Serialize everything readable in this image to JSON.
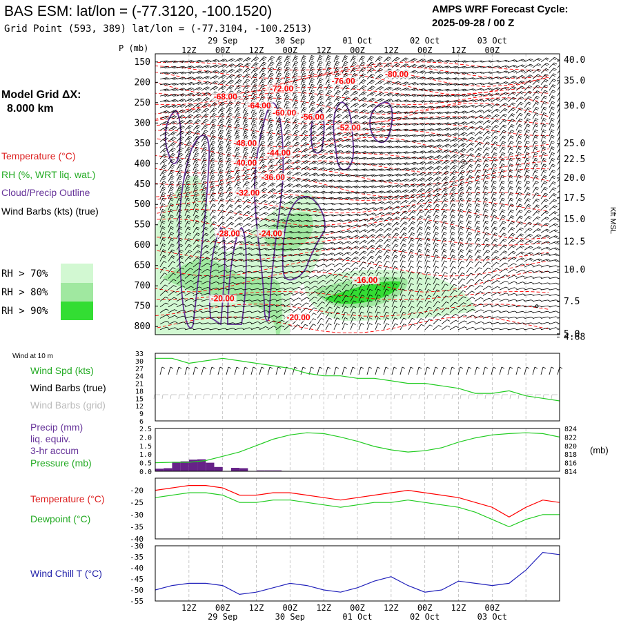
{
  "header": {
    "title": "BAS ESM:  lat/lon = (-77.3120, -100.1520)",
    "grid_point": "Grid Point (593, 389) lat/lon = (-77.3104, -100.2513)",
    "cycle_line1": "AMPS WRF Forecast Cycle:",
    "cycle_line2": "2025-09-28 / 00  Z"
  },
  "time_axis": {
    "hour_labels": [
      "12Z",
      "00Z",
      "12Z",
      "00Z",
      "12Z",
      "00Z",
      "12Z",
      "00Z",
      "12Z",
      "00Z"
    ],
    "date_labels": [
      "29 Sep",
      "30 Sep",
      "01 Oct",
      "02 Oct",
      "03 Oct"
    ]
  },
  "left_legend": {
    "model_grid_line1": "Model Grid ΔX:",
    "model_grid_line2": "8.000 km",
    "temperature": "Temperature (°C)",
    "rh": "RH (%, WRT liq. wat.)",
    "cloud": "Cloud/Precip Outline",
    "wind_barbs": "Wind Barbs (kts) (true)",
    "rh70": "RH > 70%",
    "rh80": "RH > 80%",
    "rh90": "RH > 90%",
    "wind_at_10m": "Wind at 10 m",
    "wind_spd": "Wind Spd (kts)",
    "wind_barbs_true": "Wind Barbs (true)",
    "wind_barbs_grid": "Wind Barbs (grid)",
    "precip1": "Precip (mm)",
    "precip2": "liq. equiv.",
    "precip3": "3-hr accum",
    "pressure": "Pressure (mb)",
    "temperature2": "Temperature (°C)",
    "dewpoint": "Dewpoint (°C)",
    "windchill": "Wind Chill T (°C)",
    "mb_unit": "(mb)"
  },
  "colors": {
    "temp_contour": "#ff0000",
    "rh70": "#d2f8d2",
    "rh80": "#a0e8a0",
    "rh90": "#33dd33",
    "cloud": "#663399",
    "wind": "#000000",
    "green_line": "#22cc22",
    "precip_bar": "#662288",
    "windchill": "#2222bb",
    "grid": "#bbbbbb"
  },
  "chart_data": [
    {
      "type": "time-height",
      "title": "Time-height cross section",
      "ylabel": "P (mb)",
      "y_ticks": [
        150,
        200,
        250,
        300,
        350,
        400,
        450,
        500,
        550,
        600,
        650,
        700,
        750,
        800
      ],
      "ylim": [
        130,
        820
      ],
      "right_label": "Kft MSL",
      "right_ticks": [
        "40.0",
        "35.0",
        "30.0",
        "25.0",
        "22.5",
        "20.0",
        "17.5",
        "15.0",
        "12.5",
        "10.0",
        "7.5",
        "5.0",
        "4.68"
      ],
      "right_tick_pressure": [
        145,
        196,
        258,
        350,
        389,
        435,
        484,
        537,
        592,
        661,
        739,
        818,
        826
      ],
      "temp_labels": [
        {
          "text": "-80.00",
          "p": 187,
          "h": 86
        },
        {
          "text": "-76.00",
          "p": 204,
          "h": 67
        },
        {
          "text": "-72.00",
          "p": 222,
          "h": 45
        },
        {
          "text": "-68.00",
          "p": 242,
          "h": 25
        },
        {
          "text": "-64.00",
          "p": 264,
          "h": 37
        },
        {
          "text": "-60.00",
          "p": 282,
          "h": 46
        },
        {
          "text": "-56.00",
          "p": 292,
          "h": 56
        },
        {
          "text": "-52.00",
          "p": 318,
          "h": 69
        },
        {
          "text": "-48.00",
          "p": 356,
          "h": 32
        },
        {
          "text": "-44.00",
          "p": 380,
          "h": 44
        },
        {
          "text": "-40.00",
          "p": 405,
          "h": 32
        },
        {
          "text": "-36.00",
          "p": 440,
          "h": 42
        },
        {
          "text": "-32.00",
          "p": 478,
          "h": 33
        },
        {
          "text": "-28.00",
          "p": 578,
          "h": 26
        },
        {
          "text": "-24.00",
          "p": 578,
          "h": 41
        },
        {
          "text": "-16.00",
          "p": 693,
          "h": 75
        },
        {
          "text": "-20.00",
          "p": 738,
          "h": 24
        },
        {
          "text": "-20.00",
          "p": 784,
          "h": 51
        }
      ]
    },
    {
      "type": "line",
      "title": "Wind Spd (kts)",
      "ylim": [
        6,
        33
      ],
      "y_ticks": [
        6,
        9,
        12,
        15,
        18,
        21,
        24,
        27,
        30,
        33
      ],
      "x_hours": [
        0,
        6,
        12,
        18,
        24,
        30,
        36,
        42,
        48,
        54,
        60,
        66,
        72,
        78,
        84,
        90,
        96,
        102,
        108,
        114,
        120,
        126,
        132,
        138,
        144
      ],
      "values": [
        31,
        31,
        29,
        30,
        31,
        30,
        29,
        28,
        27,
        25,
        24,
        24,
        23,
        23,
        22,
        21,
        21,
        20,
        19,
        17,
        17,
        18,
        16,
        15,
        14
      ]
    },
    {
      "type": "bar+line",
      "title": "Precip (mm) / Pressure (mb)",
      "precip_ylim": [
        0,
        2.5
      ],
      "precip_ticks": [
        "0.0",
        "0.5",
        "1.0",
        "1.5",
        "2.0",
        "2.5"
      ],
      "precip_x_hours": [
        0,
        3,
        6,
        9,
        12,
        15,
        18,
        21,
        24,
        27,
        30,
        33,
        36,
        39,
        42,
        45
      ],
      "precip_values": [
        0.15,
        0.18,
        0.55,
        0.58,
        0.68,
        0.7,
        0.5,
        0.25,
        0.0,
        0.2,
        0.18,
        0.0,
        0.05,
        0.05,
        0.05,
        0.0
      ],
      "pressure_ylim": [
        814,
        824
      ],
      "pressure_ticks": [
        814,
        816,
        818,
        820,
        822,
        824
      ],
      "pressure_x_hours": [
        0,
        6,
        12,
        18,
        24,
        30,
        36,
        42,
        48,
        54,
        60,
        66,
        72,
        78,
        84,
        90,
        96,
        102,
        108,
        114,
        120,
        126,
        132,
        138,
        144
      ],
      "pressure_values": [
        816.0,
        816.1,
        816.1,
        816.5,
        817.5,
        818.5,
        820.0,
        821.5,
        822.5,
        823.0,
        822.8,
        822.0,
        821.0,
        819.8,
        819.0,
        818.5,
        818.8,
        819.5,
        820.8,
        821.8,
        822.5,
        822.8,
        823.0,
        822.8,
        822.0
      ]
    },
    {
      "type": "line",
      "title": "Temperature / Dewpoint (°C)",
      "ylim": [
        -40,
        -15
      ],
      "y_ticks": [
        -40,
        -35,
        -30,
        -25,
        -20
      ],
      "x_hours": [
        0,
        6,
        12,
        18,
        24,
        30,
        36,
        42,
        48,
        54,
        60,
        66,
        72,
        78,
        84,
        90,
        96,
        102,
        108,
        114,
        120,
        126,
        132,
        138,
        144
      ],
      "series": [
        {
          "name": "Temperature",
          "values": [
            -20,
            -19,
            -18,
            -18,
            -19,
            -22,
            -22,
            -21,
            -21,
            -22,
            -23,
            -24,
            -23,
            -22,
            -21,
            -20,
            -21,
            -22,
            -23,
            -25,
            -27,
            -31,
            -27,
            -24,
            -25
          ]
        },
        {
          "name": "Dewpoint",
          "values": [
            -23,
            -22,
            -21,
            -21,
            -22,
            -25,
            -25,
            -24,
            -24,
            -25,
            -26,
            -27,
            -26,
            -25,
            -25,
            -24,
            -25,
            -26,
            -27,
            -29,
            -32,
            -35,
            -32,
            -30,
            -30
          ]
        }
      ]
    },
    {
      "type": "line",
      "title": "Wind Chill T (°C)",
      "ylim": [
        -55,
        -30
      ],
      "y_ticks": [
        -55,
        -50,
        -45,
        -40,
        -35,
        -30
      ],
      "x_hours": [
        0,
        6,
        12,
        18,
        24,
        30,
        36,
        42,
        48,
        54,
        60,
        66,
        72,
        78,
        84,
        90,
        96,
        102,
        108,
        114,
        120,
        126,
        132,
        138,
        144
      ],
      "values": [
        -50,
        -48,
        -47,
        -47,
        -48,
        -52,
        -51,
        -49,
        -47,
        -48,
        -50,
        -51,
        -49,
        -46,
        -44,
        -48,
        -51,
        -50,
        -46,
        -47,
        -48,
        -47,
        -41,
        -33,
        -34
      ]
    }
  ]
}
